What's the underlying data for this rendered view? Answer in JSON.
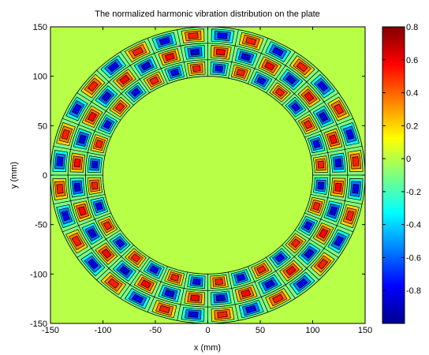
{
  "chart_data": {
    "type": "heatmap",
    "title": "The normalized harmonic vibration distribution on the plate",
    "xlabel": "x (mm)",
    "ylabel": "y (mm)",
    "xlim": [
      -150,
      150
    ],
    "ylim": [
      -150,
      150
    ],
    "x_ticks": [
      "-150",
      "-100",
      "-50",
      "0",
      "50",
      "100",
      "150"
    ],
    "y_ticks": [
      "150",
      "100",
      "50",
      "0",
      "-50",
      "-100",
      "-150"
    ],
    "colorbar": {
      "range": [
        -1,
        0.8
      ],
      "ticks": [
        "0.8",
        "0.6",
        "0.4",
        "0.2",
        "0",
        "-0.2",
        "-0.4",
        "-0.6",
        "-0.8"
      ],
      "colormap": "jet"
    },
    "background_value": 0,
    "annulus": {
      "inner_radius": 100,
      "outer_radius": 150,
      "radial_bands": [
        {
          "r_center": 108,
          "peak": 0.55
        },
        {
          "r_center": 125,
          "peak": 0.6
        },
        {
          "r_center": 142,
          "peak": 0.55
        }
      ],
      "angular_cells": 16
    }
  }
}
